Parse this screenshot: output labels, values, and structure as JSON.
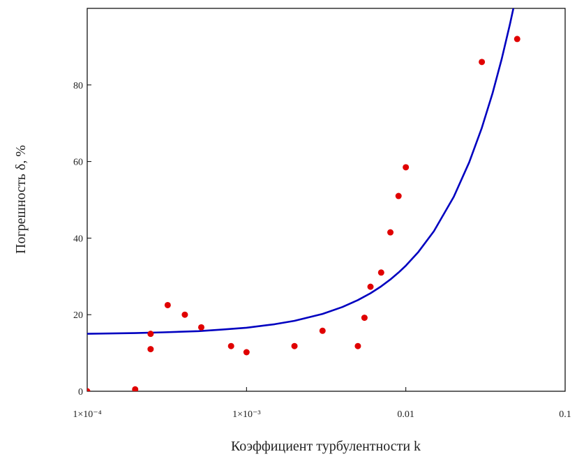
{
  "chart_data": {
    "type": "scatter",
    "title": "",
    "xlabel": "Коэффициент турбулентности k",
    "ylabel": "Погрешность δ, %",
    "x_scale": "log",
    "xlim": [
      0.0001,
      0.1
    ],
    "ylim": [
      0,
      100
    ],
    "grid": false,
    "x_ticks": [
      {
        "value": 0.0001,
        "label": "1×10⁻⁴"
      },
      {
        "value": 0.001,
        "label": "1×10⁻³"
      },
      {
        "value": 0.01,
        "label": "0.01"
      },
      {
        "value": 0.1,
        "label": "0.1"
      }
    ],
    "y_ticks": [
      {
        "value": 0,
        "label": "0"
      },
      {
        "value": 20,
        "label": "20"
      },
      {
        "value": 40,
        "label": "40"
      },
      {
        "value": 60,
        "label": "60"
      },
      {
        "value": 80,
        "label": "80"
      }
    ],
    "series": [
      {
        "kind": "points",
        "color": "#e00000",
        "points": [
          {
            "x": 0.0001,
            "y": 0
          },
          {
            "x": 0.0002,
            "y": 0.5
          },
          {
            "x": 0.00025,
            "y": 15
          },
          {
            "x": 0.00025,
            "y": 11
          },
          {
            "x": 0.00032,
            "y": 22.5
          },
          {
            "x": 0.00041,
            "y": 20
          },
          {
            "x": 0.00052,
            "y": 16.7
          },
          {
            "x": 0.0008,
            "y": 11.8
          },
          {
            "x": 0.001,
            "y": 10.2
          },
          {
            "x": 0.002,
            "y": 11.8
          },
          {
            "x": 0.003,
            "y": 15.8
          },
          {
            "x": 0.005,
            "y": 11.8
          },
          {
            "x": 0.0055,
            "y": 19.2
          },
          {
            "x": 0.006,
            "y": 27.3
          },
          {
            "x": 0.007,
            "y": 31
          },
          {
            "x": 0.008,
            "y": 41.5
          },
          {
            "x": 0.009,
            "y": 51
          },
          {
            "x": 0.01,
            "y": 58.5
          },
          {
            "x": 0.03,
            "y": 86
          },
          {
            "x": 0.05,
            "y": 92
          }
        ]
      },
      {
        "kind": "line",
        "color": "#0000c0",
        "points": [
          {
            "x": 0.0001,
            "y": 15.0
          },
          {
            "x": 0.0002,
            "y": 15.2
          },
          {
            "x": 0.0003,
            "y": 15.4
          },
          {
            "x": 0.0005,
            "y": 15.7
          },
          {
            "x": 0.0007,
            "y": 16.1
          },
          {
            "x": 0.001,
            "y": 16.6
          },
          {
            "x": 0.0015,
            "y": 17.5
          },
          {
            "x": 0.002,
            "y": 18.4
          },
          {
            "x": 0.003,
            "y": 20.2
          },
          {
            "x": 0.004,
            "y": 22.0
          },
          {
            "x": 0.005,
            "y": 23.8
          },
          {
            "x": 0.006,
            "y": 25.6
          },
          {
            "x": 0.007,
            "y": 27.4
          },
          {
            "x": 0.008,
            "y": 29.2
          },
          {
            "x": 0.009,
            "y": 31.0
          },
          {
            "x": 0.01,
            "y": 32.8
          },
          {
            "x": 0.012,
            "y": 36.4
          },
          {
            "x": 0.015,
            "y": 41.8
          },
          {
            "x": 0.02,
            "y": 50.8
          },
          {
            "x": 0.025,
            "y": 59.8
          },
          {
            "x": 0.03,
            "y": 68.8
          },
          {
            "x": 0.035,
            "y": 77.8
          },
          {
            "x": 0.04,
            "y": 86.8
          },
          {
            "x": 0.045,
            "y": 95.8
          },
          {
            "x": 0.047,
            "y": 99.4
          },
          {
            "x": 0.0473,
            "y": 100.0
          }
        ]
      }
    ]
  }
}
